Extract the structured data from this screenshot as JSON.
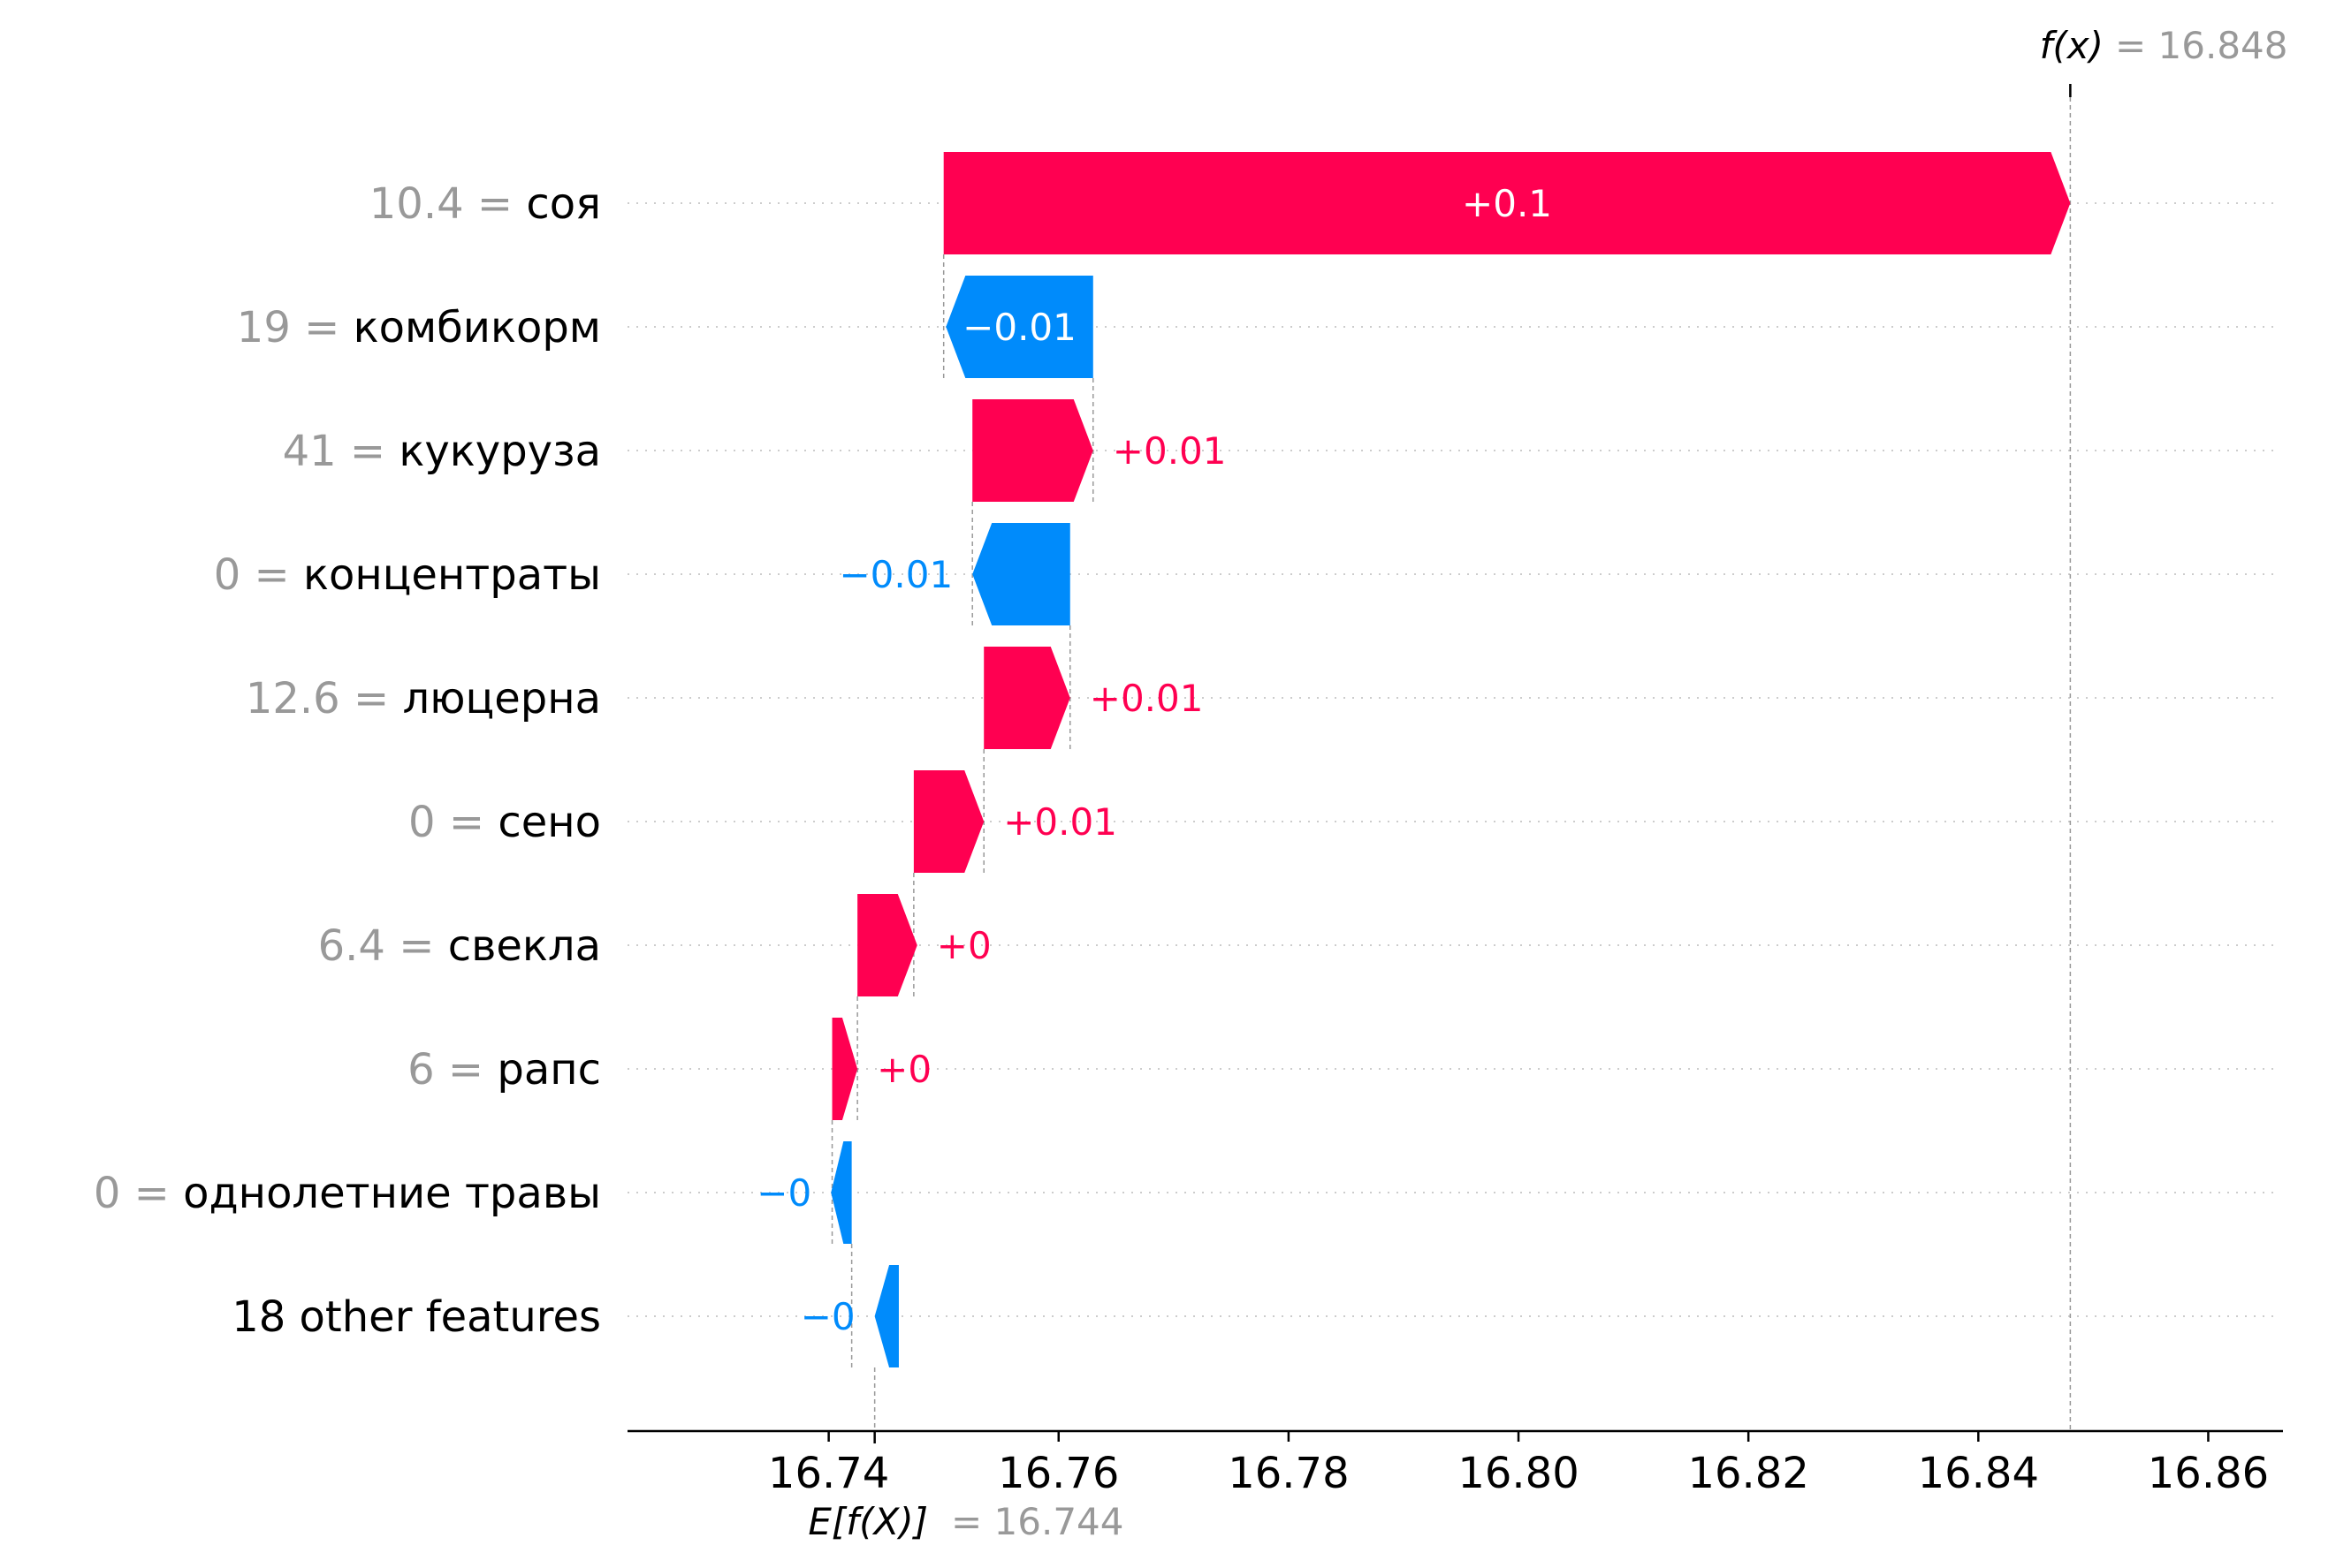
{
  "chart_data": {
    "type": "waterfall",
    "title": "",
    "xlabel": "",
    "ylabel": "",
    "xlim": [
      16.7225,
      16.8665
    ],
    "xticks": [
      16.74,
      16.76,
      16.78,
      16.8,
      16.82,
      16.84,
      16.86
    ],
    "xtick_labels": [
      "16.74",
      "16.76",
      "16.78",
      "16.80",
      "16.82",
      "16.84",
      "16.86"
    ],
    "grid": "dotted horizontal row lines",
    "fx": {
      "label": "f(x)",
      "value_text": "= 16.848",
      "value": 16.848
    },
    "efx": {
      "label": "E[f(X)]",
      "value_text": "= 16.744",
      "value": 16.744
    },
    "colors": {
      "positive": "#ff0051",
      "negative": "#008bfb",
      "value_gray": "#999999"
    },
    "features": [
      {
        "value_text": "10.4 =",
        "name": "соя",
        "start": 16.75,
        "end": 16.848,
        "label": "+0.1"
      },
      {
        "value_text": "19 =",
        "name": "комбикорм",
        "start": 16.763,
        "end": 16.7502,
        "label": "−0.01"
      },
      {
        "value_text": "41 =",
        "name": "кукуруза",
        "start": 16.7525,
        "end": 16.763,
        "label": "+0.01"
      },
      {
        "value_text": "0 =",
        "name": "концентраты",
        "start": 16.761,
        "end": 16.7525,
        "label": "−0.01"
      },
      {
        "value_text": "12.6 =",
        "name": "люцерна",
        "start": 16.7535,
        "end": 16.761,
        "label": "+0.01"
      },
      {
        "value_text": "0 =",
        "name": "сено",
        "start": 16.7474,
        "end": 16.7535,
        "label": "+0.01"
      },
      {
        "value_text": "6.4 =",
        "name": "свекла",
        "start": 16.7425,
        "end": 16.7477,
        "label": "+0"
      },
      {
        "value_text": "6 =",
        "name": "рапс",
        "start": 16.7403,
        "end": 16.7425,
        "label": "+0"
      },
      {
        "value_text": "0 =",
        "name": "однолетние травы",
        "start": 16.742,
        "end": 16.7402,
        "label": "−0"
      },
      {
        "value_text": "",
        "name": "18 other features",
        "start": 16.7461,
        "end": 16.744,
        "label": "−0"
      }
    ]
  }
}
